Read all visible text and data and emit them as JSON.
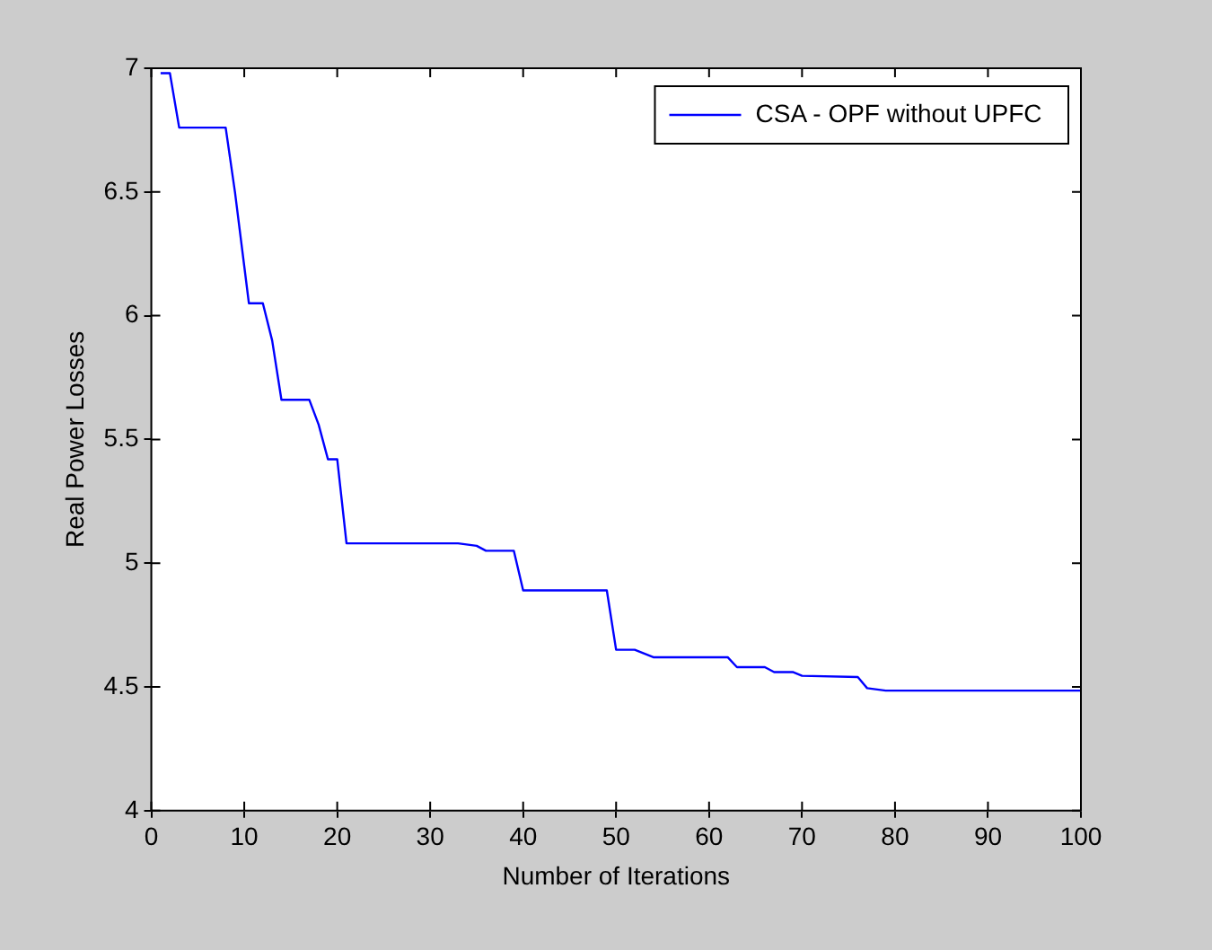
{
  "chart_data": {
    "type": "line",
    "xlabel": "Number of Iterations",
    "ylabel": "Real Power Losses",
    "x": [
      1,
      2,
      3,
      8,
      9,
      10,
      10.5,
      12,
      13,
      14,
      17,
      18,
      19,
      20,
      21,
      33,
      35,
      36,
      39,
      40,
      49,
      50,
      52,
      54,
      62,
      63,
      66,
      67,
      69,
      70,
      76,
      77,
      79,
      100
    ],
    "series": [
      {
        "name": "CSA - OPF without UPFC",
        "color": "#0000ff",
        "values": [
          6.98,
          6.98,
          6.76,
          6.76,
          6.5,
          6.2,
          6.05,
          6.05,
          5.9,
          5.66,
          5.66,
          5.56,
          5.42,
          5.42,
          5.08,
          5.08,
          5.07,
          5.05,
          5.05,
          4.89,
          4.89,
          4.65,
          4.65,
          4.62,
          4.62,
          4.58,
          4.58,
          4.56,
          4.56,
          4.545,
          4.54,
          4.495,
          4.485,
          4.485
        ]
      }
    ],
    "xlim": [
      0,
      100
    ],
    "xticks": [
      0,
      10,
      20,
      30,
      40,
      50,
      60,
      70,
      80,
      90,
      100
    ],
    "ylim": [
      4,
      7
    ],
    "yticks": [
      4,
      4.5,
      5,
      5.5,
      6,
      6.5,
      7
    ],
    "grid": false,
    "legend": "top right",
    "marker": "none",
    "line_style": "solid"
  }
}
